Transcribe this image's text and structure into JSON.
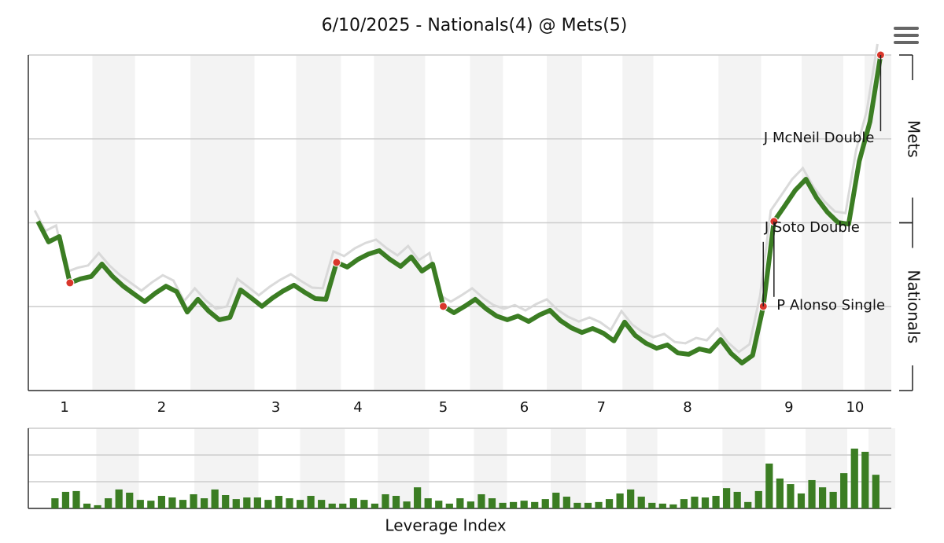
{
  "chart_data": [
    {
      "type": "line",
      "title": "6/10/2025 - Nationals(4) @ Mets(5)",
      "y_axis_labels": {
        "top": "Mets",
        "bottom": "Nationals"
      },
      "xlim": [
        -0.9,
        80
      ],
      "ylim": [
        0,
        100
      ],
      "yticks": [
        0,
        25,
        50,
        75,
        100
      ],
      "grid": true,
      "color": "#3b7d23",
      "point_color": "#d9362b",
      "inning_labels": [
        1,
        2,
        3,
        4,
        5,
        6,
        7,
        8,
        9,
        10
      ],
      "inning_x": [
        2.5,
        11.6,
        22.3,
        30,
        38,
        45.6,
        52.8,
        60.9,
        70.4,
        76.6
      ],
      "shaded_ranges": [
        [
          5.1,
          9.1
        ],
        [
          14.3,
          20.3
        ],
        [
          24.2,
          28.4
        ],
        [
          31.5,
          36.3
        ],
        [
          40.5,
          43.6
        ],
        [
          47.7,
          51.0
        ],
        [
          54.8,
          57.7
        ],
        [
          63.8,
          67.8
        ],
        [
          71.6,
          75.5
        ],
        [
          77.5,
          80
        ]
      ],
      "values": [
        50.4,
        44.3,
        45.9,
        32.1,
        33.3,
        34.0,
        37.7,
        34.0,
        31.1,
        28.8,
        26.5,
        29.0,
        31.1,
        29.5,
        23.4,
        27.2,
        23.7,
        21.1,
        21.8,
        30.0,
        27.6,
        25.1,
        27.6,
        29.7,
        31.4,
        29.3,
        27.4,
        27.2,
        38.2,
        36.8,
        39.1,
        40.7,
        41.7,
        39.1,
        37.0,
        39.8,
        35.6,
        37.7,
        25.1,
        23.2,
        25.1,
        27.2,
        24.4,
        22.2,
        21.1,
        22.2,
        20.6,
        22.5,
        23.9,
        20.8,
        18.7,
        17.3,
        18.5,
        17.1,
        14.8,
        20.4,
        16.4,
        14.1,
        12.6,
        13.6,
        11.2,
        10.8,
        12.4,
        11.7,
        15.2,
        11.0,
        8.2,
        10.5,
        25.1,
        50.4,
        55.0,
        59.7,
        63.0,
        57.4,
        53.2,
        50.1,
        49.6,
        68.4,
        80.1,
        100
      ],
      "highlighted": [
        3,
        28,
        38,
        68,
        69,
        79
      ],
      "annotations": [
        {
          "text": "J McNeil Double",
          "x": 79
        },
        {
          "text": "J Soto Double",
          "x": 69
        },
        {
          "text": "P Alonso Single",
          "x": 68
        }
      ]
    },
    {
      "type": "bar",
      "xlabel": "Leverage Index",
      "xlim": [
        -2.5,
        78.45
      ],
      "ylim": [
        0,
        3
      ],
      "yticks": [
        0,
        1,
        2,
        3
      ],
      "grid": true,
      "color": "#3b7d23",
      "values": [
        0.38,
        0.62,
        0.65,
        0.18,
        0.12,
        0.38,
        0.71,
        0.59,
        0.32,
        0.29,
        0.47,
        0.41,
        0.32,
        0.53,
        0.38,
        0.71,
        0.5,
        0.35,
        0.41,
        0.41,
        0.32,
        0.47,
        0.38,
        0.32,
        0.47,
        0.32,
        0.18,
        0.18,
        0.38,
        0.32,
        0.18,
        0.53,
        0.47,
        0.26,
        0.79,
        0.38,
        0.29,
        0.18,
        0.38,
        0.26,
        0.53,
        0.38,
        0.21,
        0.24,
        0.29,
        0.24,
        0.35,
        0.59,
        0.44,
        0.21,
        0.21,
        0.24,
        0.35,
        0.56,
        0.71,
        0.44,
        0.21,
        0.18,
        0.15,
        0.35,
        0.44,
        0.41,
        0.47,
        0.76,
        0.62,
        0.24,
        0.65,
        1.68,
        1.12,
        0.91,
        0.56,
        1.06,
        0.79,
        0.62,
        1.32,
        2.24,
        2.12,
        1.26
      ]
    }
  ]
}
